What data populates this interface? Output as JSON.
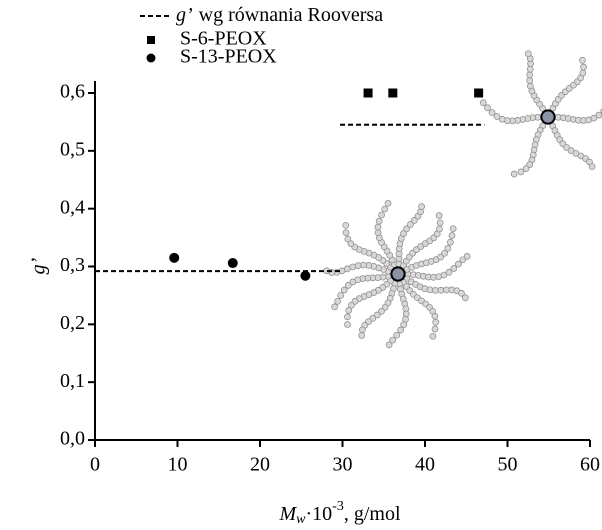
{
  "chart_data": {
    "type": "scatter",
    "x_label": {
      "symbol": "M",
      "subscript": "w",
      "base": "·10",
      "exponent": "-3",
      "unit": ", g/mol"
    },
    "y_label": "g’",
    "xlim": [
      0,
      60
    ],
    "xticks": [
      0,
      10,
      20,
      30,
      40,
      50,
      60
    ],
    "ylim": [
      0,
      0.6
    ],
    "yticks": [
      {
        "value": 0,
        "label": "0,0"
      },
      {
        "value": 0.1,
        "label": "0,1"
      },
      {
        "value": 0.2,
        "label": "0,2"
      },
      {
        "value": 0.3,
        "label": "0,3"
      },
      {
        "value": 0.4,
        "label": "0,4"
      },
      {
        "value": 0.5,
        "label": "0,5"
      },
      {
        "value": 0.6,
        "label": "0,6"
      }
    ],
    "series": [
      {
        "name": "S-6-PEOX",
        "marker": "square",
        "color": "#000000",
        "x": [
          33.1,
          36.1,
          46.5
        ],
        "values": [
          0.6,
          0.6,
          0.6
        ]
      },
      {
        "name": "S-13-PEOX",
        "marker": "circle",
        "color": "#000000",
        "x": [
          9.6,
          16.7,
          25.5
        ],
        "values": [
          0.315,
          0.306,
          0.284
        ]
      }
    ],
    "reference_lines": {
      "name_symbol": "g’",
      "name": "wg  równania  Rooversa",
      "segments": [
        {
          "x": [
            0,
            29.7
          ],
          "y": 0.292
        },
        {
          "x": [
            29.7,
            47.2
          ],
          "y": 0.545
        }
      ]
    }
  }
}
